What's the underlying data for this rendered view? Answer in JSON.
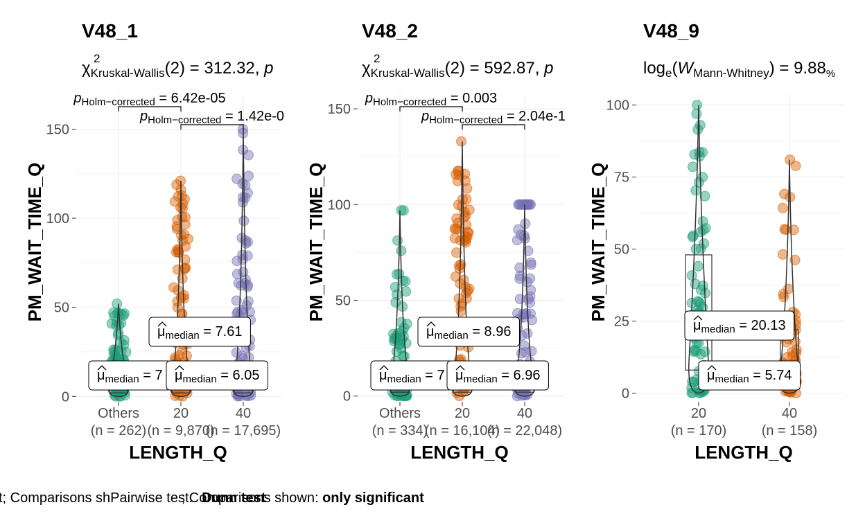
{
  "chart_data": [
    {
      "type": "scatter",
      "title": "V48_1",
      "subtitle_stat": "χ²Kruskal-Wallis(2) = 312.32, p",
      "subtitle_parts": {
        "symbol": "χ",
        "sup": "2",
        "sub": "Kruskal-Wallis",
        "rest": "(2) = 312.32, ",
        "tail": "p"
      },
      "xlabel": "LENGTH_Q",
      "ylabel": "PM_WAIT_TIME_Q",
      "ylim": [
        -3,
        170
      ],
      "yticks": [
        0,
        50,
        100,
        150
      ],
      "groups": [
        {
          "name": "Others",
          "n_label": "(n = 262)",
          "color": "#1B9E77",
          "min": 0,
          "max": 52,
          "median": 7.0,
          "q1": 2,
          "q3": 15,
          "dense_top": 36,
          "median_label": "7"
        },
        {
          "name": "20",
          "n_label": "(n = 9,870)",
          "color": "#D95F02",
          "min": 0,
          "max": 121,
          "median": 7.61,
          "q1": 2,
          "q3": 15,
          "dense_top": 98,
          "median_label": "7.61"
        },
        {
          "name": "40",
          "n_label": "(n = 17,695)",
          "color": "#7570B3",
          "min": 0,
          "max": 150,
          "median": 6.05,
          "q1": 2,
          "q3": 15,
          "dense_top": 90,
          "median_label": "6.05"
        }
      ],
      "comparisons": [
        {
          "label_p": "p",
          "label_sub": "Holm−corrected",
          "label_rest": " = 6.42e-05",
          "from": 0,
          "to": 1,
          "y": 173
        },
        {
          "label_p": "p",
          "label_sub": "Holm−corrected",
          "label_rest": " = 1.42e-0",
          "from": 1,
          "to": 2,
          "y": 162
        }
      ],
      "median_label_prefix": "μ",
      "median_label_sub": "median"
    },
    {
      "type": "scatter",
      "title": "V48_2",
      "subtitle_stat": "χ²Kruskal-Wallis(2) = 592.87, p",
      "subtitle_parts": {
        "symbol": "χ",
        "sup": "2",
        "sub": "Kruskal-Wallis",
        "rest": "(2) = 592.87, ",
        "tail": "p"
      },
      "xlabel": "LENGTH_Q",
      "ylabel": "PM_WAIT_TIME_Q",
      "ylim": [
        -3,
        158
      ],
      "yticks": [
        0,
        50,
        100,
        150
      ],
      "groups": [
        {
          "name": "Others",
          "n_label": "(n = 334)",
          "color": "#1B9E77",
          "min": 0,
          "max": 97,
          "median": 7.0,
          "q1": 2,
          "q3": 15,
          "dense_top": 40,
          "median_label": "7"
        },
        {
          "name": "20",
          "n_label": "(n = 16,104)",
          "color": "#D95F02",
          "min": 0,
          "max": 133,
          "median": 8.96,
          "q1": 2,
          "q3": 15,
          "dense_top": 99,
          "median_label": "8.96"
        },
        {
          "name": "40",
          "n_label": "(n = 22,048)",
          "color": "#7570B3",
          "min": 0,
          "max": 100,
          "median": 6.96,
          "q1": 2,
          "q3": 15,
          "dense_top": 100,
          "median_label": "6.96"
        }
      ],
      "comparisons": [
        {
          "label_p": "p",
          "label_sub": "Holm−corrected",
          "label_rest": " = 0.003",
          "from": 0,
          "to": 1,
          "y": 172
        },
        {
          "label_p": "p",
          "label_sub": "Holm−corrected",
          "label_rest": " = 2.04e-1",
          "from": 1,
          "to": 2,
          "y": 162
        }
      ],
      "median_label_prefix": "μ",
      "median_label_sub": "median"
    },
    {
      "type": "scatter",
      "title": "V48_9",
      "subtitle_stat": "loge(WMann-Whitney) = 9.88",
      "subtitle_parts": {
        "pre": "log",
        "pre_sub": "e",
        "paren_open": "(",
        "W": "W",
        "sub": "Mann-Whitney",
        "rest": ") = 9.88",
        "tail_sub": "%"
      },
      "xlabel": "LENGTH_Q",
      "ylabel": "PM_WAIT_TIME_Q",
      "ylim": [
        -3,
        104
      ],
      "yticks": [
        0,
        25,
        50,
        75,
        100
      ],
      "groups": [
        {
          "name": "20",
          "n_label": "(n = 170)",
          "color": "#1B9E77",
          "min": 0,
          "max": 100,
          "median": 20.13,
          "q1": 8,
          "q3": 48,
          "dense_top": 60,
          "median_label": "20.13"
        },
        {
          "name": "40",
          "n_label": "(n = 158)",
          "color": "#D95F02",
          "min": 0,
          "max": 81,
          "median": 5.74,
          "q1": 2,
          "q3": 22,
          "dense_top": 30,
          "median_label": "5.74"
        }
      ],
      "comparisons": [],
      "median_label_prefix": "μ",
      "median_label_sub": "median"
    }
  ],
  "caption": {
    "part1": "t; Comparisons sh",
    "overlap_a": "Pairwise test: ",
    "overlap_b": "Dunn test",
    "part2": "; Comparisons shown: ",
    "bold": "only significant"
  }
}
